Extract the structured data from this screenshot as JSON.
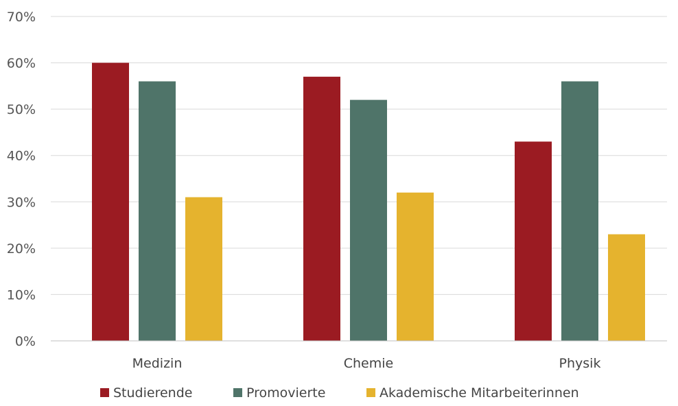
{
  "chart_data": {
    "type": "bar",
    "categories": [
      "Medizin",
      "Chemie",
      "Physik"
    ],
    "series": [
      {
        "name": "Studierende",
        "color": "#9b1b22",
        "values": [
          60,
          57,
          43
        ]
      },
      {
        "name": "Promovierte",
        "color": "#4f7469",
        "values": [
          56,
          52,
          56
        ]
      },
      {
        "name": "Akademische Mitarbeiterinnen",
        "color": "#e5b32e",
        "values": [
          31,
          32,
          23
        ]
      }
    ],
    "ylim": [
      0,
      70
    ],
    "yticks": [
      0,
      10,
      20,
      30,
      40,
      50,
      60,
      70
    ],
    "ytick_suffix": "%",
    "grid": true,
    "legend": "bottom"
  }
}
